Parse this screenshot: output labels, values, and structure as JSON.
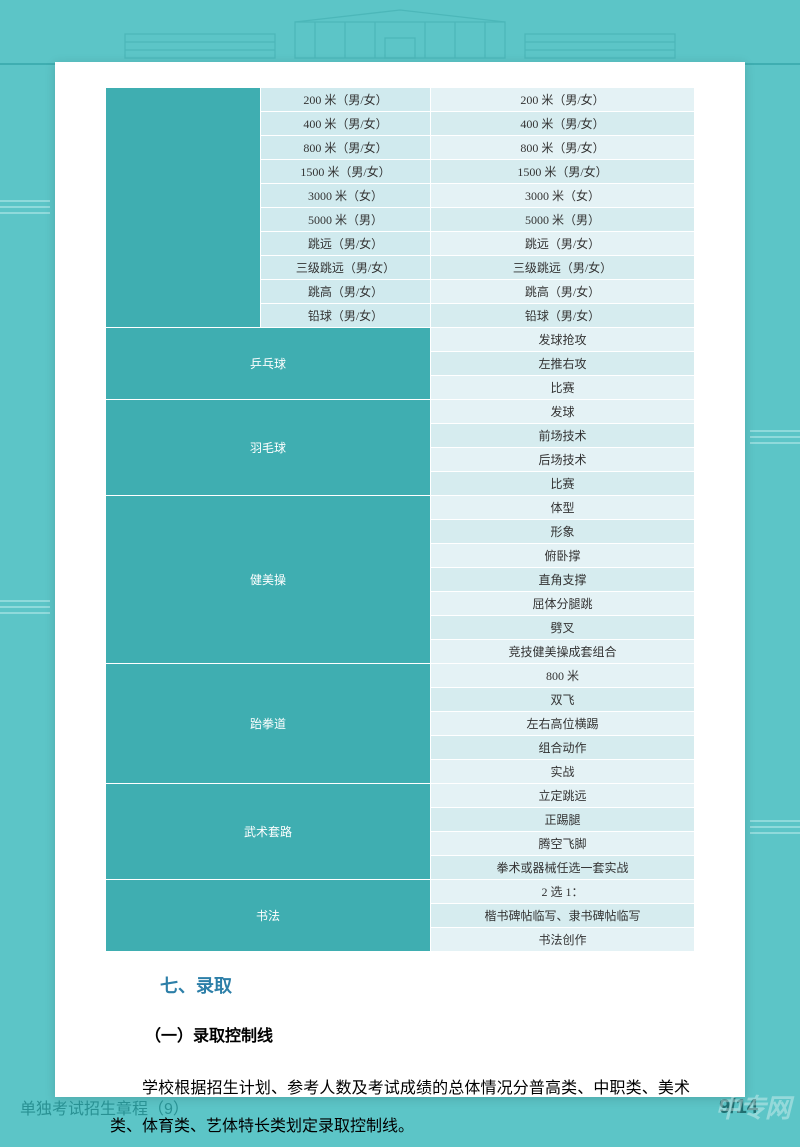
{
  "palette": {
    "page_bg": "#5cc5c7",
    "paper_bg": "#ffffff",
    "cat_bg": "#3faeb1",
    "col2_bg": "#d0eaee",
    "col3_bg_even": "#e4f2f5",
    "col3_bg_odd": "#d6ecef",
    "heading_color": "#2d7fa8"
  },
  "top_track": {
    "rows": [
      {
        "c2": "200 米（男/女）",
        "c3": "200 米（男/女）"
      },
      {
        "c2": "400 米（男/女）",
        "c3": "400 米（男/女）"
      },
      {
        "c2": "800 米（男/女）",
        "c3": "800 米（男/女）"
      },
      {
        "c2": "1500 米（男/女）",
        "c3": "1500 米（男/女）"
      },
      {
        "c2": "3000 米（女）",
        "c3": "3000 米（女）"
      },
      {
        "c2": "5000 米（男）",
        "c3": "5000 米（男）"
      },
      {
        "c2": "跳远（男/女）",
        "c3": "跳远（男/女）"
      },
      {
        "c2": "三级跳远（男/女）",
        "c3": "三级跳远（男/女）"
      },
      {
        "c2": "跳高（男/女）",
        "c3": "跳高（男/女）"
      },
      {
        "c2": "铅球（男/女）",
        "c3": "铅球（男/女）"
      }
    ]
  },
  "categories": [
    {
      "name": "乒乓球",
      "items": [
        "发球抢攻",
        "左推右攻",
        "比赛"
      ]
    },
    {
      "name": "羽毛球",
      "items": [
        "发球",
        "前场技术",
        "后场技术",
        "比赛"
      ]
    },
    {
      "name": "健美操",
      "items": [
        "体型",
        "形象",
        "俯卧撑",
        "直角支撑",
        "屈体分腿跳",
        "劈叉",
        "竞技健美操成套组合"
      ]
    },
    {
      "name": "跆拳道",
      "items": [
        "800 米",
        "双飞",
        "左右高位横踢",
        "组合动作",
        "实战"
      ]
    },
    {
      "name": "武术套路",
      "items": [
        "立定跳远",
        "正踢腿",
        "腾空飞脚",
        "拳术或器械任选一套实战"
      ]
    },
    {
      "name": "书法",
      "items": [
        "2 选 1：",
        "楷书碑帖临写、隶书碑帖临写",
        "书法创作"
      ]
    }
  ],
  "section_heading": "七、录取",
  "sub_heading": "（一）录取控制线",
  "body": "学校根据招生计划、参考人数及考试成绩的总体情况分普高类、中职类、美术类、体育类、艺体特长类划定录取控制线。",
  "footer_left": "单独考试招生章程（9）",
  "footer_right": "9/14",
  "watermark": "中专网"
}
